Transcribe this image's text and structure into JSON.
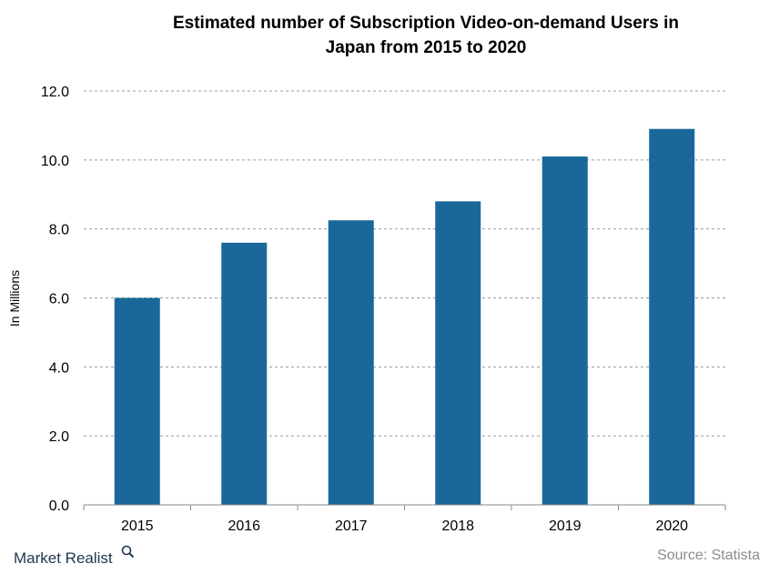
{
  "chart_data": {
    "type": "bar",
    "title_line1": "Estimated number of Subscription Video-on-demand Users in",
    "title_line2": "Japan from 2015 to 2020",
    "ylabel": "In Millions",
    "xlabel": "",
    "categories": [
      "2015",
      "2016",
      "2017",
      "2018",
      "2019",
      "2020"
    ],
    "values": [
      6.0,
      7.6,
      8.25,
      8.8,
      10.1,
      10.9
    ],
    "ylim": [
      0,
      12
    ],
    "yticks": [
      "0.0",
      "2.0",
      "4.0",
      "6.0",
      "8.0",
      "10.0",
      "12.0"
    ],
    "bar_color": "#1a6899",
    "grid": true,
    "legend": "none"
  },
  "source": "Source: Statista",
  "brand": {
    "name": "Market Realist",
    "icon": "magnifier-icon"
  }
}
